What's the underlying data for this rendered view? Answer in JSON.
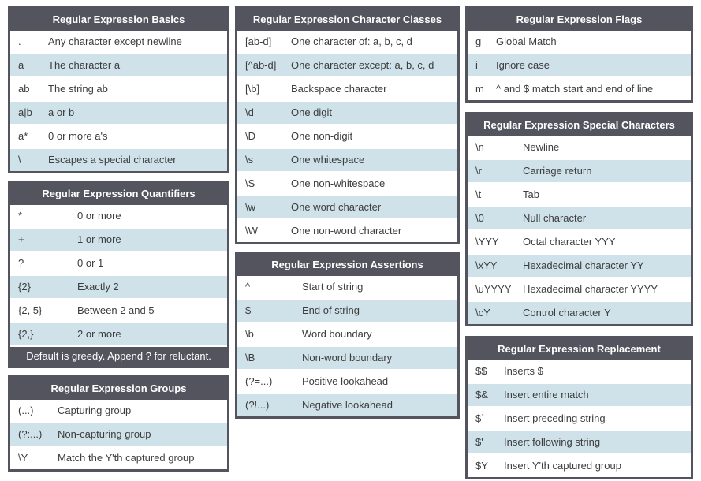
{
  "theme": {
    "header_bg": "#54545e",
    "header_text_color": "#ffffff",
    "row_bg": "#ffffff",
    "row_alt_bg": "#cfe1e9",
    "row_text_color": "#3d3d3d",
    "border_color": "#54545e"
  },
  "columns": [
    {
      "tables": [
        {
          "title": "Regular Expression Basics",
          "rows": [
            [
              ".",
              "Any character except newline"
            ],
            [
              "a",
              "The character a"
            ],
            [
              "ab",
              "The string ab"
            ],
            [
              "a|b",
              "a or b"
            ],
            [
              "a*",
              "0 or more a's"
            ],
            [
              "\\",
              "Escapes a special character"
            ]
          ]
        },
        {
          "title": "Regular Expression Quantifiers",
          "rows": [
            [
              "*",
              "0 or more"
            ],
            [
              "+",
              "1 or more"
            ],
            [
              "?",
              "0 or 1"
            ],
            [
              "{2}",
              "Exactly 2"
            ],
            [
              "{2, 5}",
              "Between 2 and 5"
            ],
            [
              "{2,}",
              "2 or more"
            ]
          ],
          "footer": "Default is greedy. Append ? for reluctant."
        },
        {
          "title": "Regular Expression Groups",
          "rows": [
            [
              "(...)",
              "Capturing group"
            ],
            [
              "(?:...)",
              "Non-capturing group"
            ],
            [
              "\\Y",
              "Match the Y'th captured group"
            ]
          ]
        }
      ]
    },
    {
      "tables": [
        {
          "title": "Regular Expression Character Classes",
          "rows": [
            [
              "[ab-d]",
              "One character of: a, b, c, d"
            ],
            [
              "[^ab-d]",
              "One character except: a, b, c, d"
            ],
            [
              "[\\b]",
              "Backspace character"
            ],
            [
              "\\d",
              "One digit"
            ],
            [
              "\\D",
              "One non-digit"
            ],
            [
              "\\s",
              "One whitespace"
            ],
            [
              "\\S",
              "One non-whitespace"
            ],
            [
              "\\w",
              "One word character"
            ],
            [
              "\\W",
              "One non-word character"
            ]
          ]
        },
        {
          "title": "Regular Expression Assertions",
          "rows": [
            [
              "^",
              "Start of string"
            ],
            [
              "$",
              "End of string"
            ],
            [
              "\\b",
              "Word boundary"
            ],
            [
              "\\B",
              "Non-word boundary"
            ],
            [
              "(?=...)",
              "Positive lookahead"
            ],
            [
              "(?!...)",
              "Negative lookahead"
            ]
          ]
        }
      ]
    },
    {
      "tables": [
        {
          "title": "Regular Expression Flags",
          "rows": [
            [
              "g",
              "Global Match"
            ],
            [
              "i",
              "Ignore case"
            ],
            [
              "m",
              "^ and $ match start and end of line"
            ]
          ]
        },
        {
          "title": "Regular Expression Special Characters",
          "rows": [
            [
              "\\n",
              "Newline"
            ],
            [
              "\\r",
              "Carriage return"
            ],
            [
              "\\t",
              "Tab"
            ],
            [
              "\\0",
              "Null character"
            ],
            [
              "\\YYY",
              "Octal character YYY"
            ],
            [
              "\\xYY",
              "Hexadecimal character YY"
            ],
            [
              "\\uYYYY",
              "Hexadecimal character YYYY"
            ],
            [
              "\\cY",
              "Control character Y"
            ]
          ]
        },
        {
          "title": "Regular Expression Replacement",
          "rows": [
            [
              "$$",
              "Inserts $"
            ],
            [
              "$&",
              "Insert entire match"
            ],
            [
              "$`",
              "Insert preceding string"
            ],
            [
              "$'",
              "Insert following string"
            ],
            [
              "$Y",
              "Insert Y'th captured group"
            ]
          ]
        }
      ]
    }
  ]
}
